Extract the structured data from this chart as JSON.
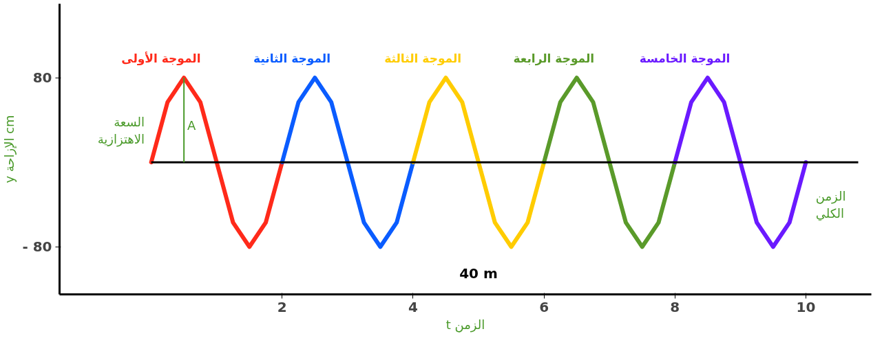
{
  "chart_data": {
    "type": "line",
    "ylabel": "y الإزاحة cm",
    "xlabel": "t الزمن",
    "xlim": [
      -1.4,
      11
    ],
    "ylim": [
      -125,
      150
    ],
    "xticks": [
      2,
      4,
      6,
      8,
      10
    ],
    "yticks": [
      {
        "value": -80,
        "label": "- 80"
      },
      80
    ],
    "grid": false,
    "legend": false,
    "marker": "none",
    "line_style": "solid",
    "series": [
      {
        "name": "الموجة الأولى",
        "color": "#ff2a1a",
        "x": [
          0,
          0.25,
          0.5,
          0.75,
          1,
          1.25,
          1.5,
          1.75,
          2
        ],
        "values": [
          0,
          57,
          80,
          57,
          0,
          -57,
          -80,
          -57,
          0
        ]
      },
      {
        "name": "الموجة الثانية",
        "color": "#0a5cff",
        "x": [
          2,
          2.25,
          2.5,
          2.75,
          3,
          3.25,
          3.5,
          3.75,
          4
        ],
        "values": [
          0,
          57,
          80,
          57,
          0,
          -57,
          -80,
          -57,
          0
        ]
      },
      {
        "name": "الموجة الثالثة",
        "color": "#ffcc00",
        "x": [
          4,
          4.25,
          4.5,
          4.75,
          5,
          5.25,
          5.5,
          5.75,
          6
        ],
        "values": [
          0,
          57,
          80,
          57,
          0,
          -57,
          -80,
          -57,
          0
        ]
      },
      {
        "name": "الموجة الرابعة",
        "color": "#5a9a2a",
        "x": [
          6,
          6.25,
          6.5,
          6.75,
          7,
          7.25,
          7.5,
          7.75,
          8
        ],
        "values": [
          0,
          57,
          80,
          57,
          0,
          -57,
          -80,
          -57,
          0
        ]
      },
      {
        "name": "الموجة الخامسة",
        "color": "#6a1aff",
        "x": [
          8,
          8.25,
          8.5,
          8.75,
          9,
          9.25,
          9.5,
          9.75,
          10
        ],
        "values": [
          0,
          57,
          80,
          57,
          0,
          -57,
          -80,
          -57,
          0
        ]
      }
    ],
    "annotations": [
      "A",
      "السعة الاهتزازية",
      "40 m",
      "الزمن الكلي"
    ]
  }
}
